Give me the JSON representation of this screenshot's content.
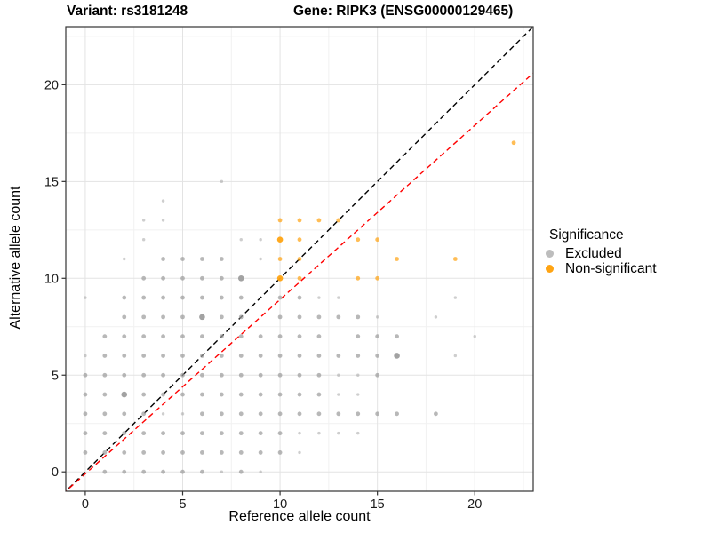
{
  "titles": {
    "left": "Variant: rs3181248",
    "right": "Gene: RIPK3 (ENSG00000129465)"
  },
  "legend": {
    "title": "Significance",
    "items": [
      {
        "label": "Excluded",
        "color": "#bdbdbd"
      },
      {
        "label": "Non-significant",
        "color": "#FFA413"
      }
    ]
  },
  "chart_data": {
    "type": "scatter",
    "xlabel": "Reference allele count",
    "ylabel": "Alternative allele count",
    "x_range": [
      -1,
      23
    ],
    "y_range": [
      -1,
      23
    ],
    "x_ticks": [
      0,
      5,
      10,
      15,
      20
    ],
    "y_ticks": [
      0,
      5,
      10,
      15,
      20
    ],
    "minor_ticks": [
      2.5,
      7.5,
      12.5,
      17.5,
      22.5
    ],
    "grid": "major+minor",
    "legend_position": "right",
    "colors": {
      "major_grid": "#e3e3e3",
      "minor_grid": "#f1f1f1",
      "panel_border": "#333333"
    },
    "reference_lines": [
      {
        "name": "identity",
        "slope": 1.0,
        "intercept": 0.0,
        "color": "#000000",
        "dashed": true
      },
      {
        "name": "fit",
        "slope": 0.9,
        "intercept": -0.1,
        "color": "#FF0000",
        "dashed": true
      }
    ],
    "series": [
      {
        "name": "Excluded",
        "color": "#9d9d9d",
        "points": [
          [
            0,
            1,
            2
          ],
          [
            0,
            2,
            2
          ],
          [
            0,
            3,
            2
          ],
          [
            0,
            4,
            2
          ],
          [
            0,
            5,
            2
          ],
          [
            0,
            6,
            1
          ],
          [
            0,
            9,
            1
          ],
          [
            1,
            0,
            2
          ],
          [
            1,
            1,
            2
          ],
          [
            1,
            2,
            2
          ],
          [
            1,
            3,
            2
          ],
          [
            1,
            4,
            2
          ],
          [
            1,
            5,
            2
          ],
          [
            1,
            6,
            2
          ],
          [
            1,
            7,
            2
          ],
          [
            2,
            0,
            2
          ],
          [
            2,
            1,
            2
          ],
          [
            2,
            2,
            2
          ],
          [
            2,
            3,
            2
          ],
          [
            2,
            4,
            3
          ],
          [
            2,
            5,
            2
          ],
          [
            2,
            6,
            2
          ],
          [
            2,
            7,
            2
          ],
          [
            2,
            8,
            2
          ],
          [
            2,
            9,
            2
          ],
          [
            2,
            11,
            1
          ],
          [
            3,
            0,
            2
          ],
          [
            3,
            1,
            2
          ],
          [
            3,
            2,
            2
          ],
          [
            3,
            3,
            2
          ],
          [
            3,
            4,
            2
          ],
          [
            3,
            5,
            2
          ],
          [
            3,
            6,
            2
          ],
          [
            3,
            7,
            2
          ],
          [
            3,
            8,
            2
          ],
          [
            3,
            9,
            2
          ],
          [
            3,
            10,
            2
          ],
          [
            3,
            12,
            1
          ],
          [
            3,
            13,
            1
          ],
          [
            4,
            0,
            2
          ],
          [
            4,
            1,
            2
          ],
          [
            4,
            2,
            2
          ],
          [
            4,
            3,
            1
          ],
          [
            4,
            4,
            2
          ],
          [
            4,
            5,
            2
          ],
          [
            4,
            6,
            2
          ],
          [
            4,
            7,
            2
          ],
          [
            4,
            8,
            2
          ],
          [
            4,
            9,
            2
          ],
          [
            4,
            10,
            2
          ],
          [
            4,
            11,
            2
          ],
          [
            4,
            13,
            1
          ],
          [
            4,
            14,
            1
          ],
          [
            5,
            0,
            2
          ],
          [
            5,
            1,
            2
          ],
          [
            5,
            2,
            2
          ],
          [
            5,
            3,
            1
          ],
          [
            5,
            4,
            2
          ],
          [
            5,
            5,
            2
          ],
          [
            5,
            6,
            2
          ],
          [
            5,
            7,
            2
          ],
          [
            5,
            8,
            2
          ],
          [
            5,
            9,
            2
          ],
          [
            5,
            10,
            2
          ],
          [
            5,
            11,
            2
          ],
          [
            6,
            0,
            2
          ],
          [
            6,
            1,
            2
          ],
          [
            6,
            2,
            2
          ],
          [
            6,
            3,
            2
          ],
          [
            6,
            4,
            2
          ],
          [
            6,
            5,
            2
          ],
          [
            6,
            6,
            2
          ],
          [
            6,
            7,
            2
          ],
          [
            6,
            8,
            3
          ],
          [
            6,
            9,
            2
          ],
          [
            6,
            10,
            2
          ],
          [
            6,
            11,
            2
          ],
          [
            7,
            0,
            1
          ],
          [
            7,
            1,
            2
          ],
          [
            7,
            2,
            2
          ],
          [
            7,
            3,
            2
          ],
          [
            7,
            4,
            2
          ],
          [
            7,
            5,
            2
          ],
          [
            7,
            6,
            2
          ],
          [
            7,
            7,
            2
          ],
          [
            7,
            8,
            2
          ],
          [
            7,
            9,
            2
          ],
          [
            7,
            10,
            2
          ],
          [
            7,
            11,
            2
          ],
          [
            7,
            15,
            1
          ],
          [
            8,
            0,
            2
          ],
          [
            8,
            1,
            2
          ],
          [
            8,
            2,
            2
          ],
          [
            8,
            3,
            2
          ],
          [
            8,
            4,
            2
          ],
          [
            8,
            5,
            2
          ],
          [
            8,
            6,
            2
          ],
          [
            8,
            7,
            2
          ],
          [
            8,
            8,
            2
          ],
          [
            8,
            9,
            2
          ],
          [
            8,
            10,
            3
          ],
          [
            8,
            12,
            1
          ],
          [
            9,
            0,
            1
          ],
          [
            9,
            1,
            2
          ],
          [
            9,
            2,
            2
          ],
          [
            9,
            3,
            2
          ],
          [
            9,
            4,
            2
          ],
          [
            9,
            5,
            2
          ],
          [
            9,
            6,
            2
          ],
          [
            9,
            7,
            2
          ],
          [
            9,
            11,
            1
          ],
          [
            9,
            12,
            1
          ],
          [
            10,
            1,
            2
          ],
          [
            10,
            2,
            2
          ],
          [
            10,
            3,
            2
          ],
          [
            10,
            4,
            2
          ],
          [
            10,
            5,
            2
          ],
          [
            10,
            6,
            2
          ],
          [
            10,
            7,
            2
          ],
          [
            10,
            8,
            2
          ],
          [
            10,
            9,
            2
          ],
          [
            11,
            1,
            1
          ],
          [
            11,
            2,
            1
          ],
          [
            11,
            3,
            2
          ],
          [
            11,
            4,
            2
          ],
          [
            11,
            5,
            2
          ],
          [
            11,
            6,
            2
          ],
          [
            11,
            7,
            2
          ],
          [
            11,
            8,
            2
          ],
          [
            11,
            9,
            2
          ],
          [
            12,
            2,
            1
          ],
          [
            12,
            3,
            2
          ],
          [
            12,
            4,
            2
          ],
          [
            12,
            5,
            2
          ],
          [
            12,
            6,
            2
          ],
          [
            12,
            7,
            2
          ],
          [
            12,
            8,
            2
          ],
          [
            12,
            9,
            1
          ],
          [
            13,
            2,
            1
          ],
          [
            13,
            3,
            2
          ],
          [
            13,
            4,
            1
          ],
          [
            13,
            5,
            1
          ],
          [
            13,
            6,
            2
          ],
          [
            13,
            8,
            2
          ],
          [
            13,
            9,
            1
          ],
          [
            14,
            2,
            1
          ],
          [
            14,
            3,
            2
          ],
          [
            14,
            4,
            1
          ],
          [
            14,
            5,
            1
          ],
          [
            14,
            6,
            2
          ],
          [
            14,
            7,
            2
          ],
          [
            14,
            8,
            2
          ],
          [
            15,
            3,
            2
          ],
          [
            15,
            5,
            2
          ],
          [
            15,
            6,
            2
          ],
          [
            15,
            7,
            2
          ],
          [
            15,
            8,
            1
          ],
          [
            16,
            3,
            2
          ],
          [
            16,
            6,
            3
          ],
          [
            16,
            7,
            2
          ],
          [
            18,
            3,
            2
          ],
          [
            18,
            8,
            1
          ],
          [
            19,
            6,
            1
          ],
          [
            19,
            9,
            1
          ],
          [
            20,
            7,
            1
          ]
        ]
      },
      {
        "name": "Non-significant",
        "color": "#FFA413",
        "points": [
          [
            10,
            10,
            3
          ],
          [
            10,
            11,
            2
          ],
          [
            10,
            12,
            3
          ],
          [
            10,
            13,
            2
          ],
          [
            11,
            10,
            2
          ],
          [
            11,
            11,
            2
          ],
          [
            11,
            12,
            2
          ],
          [
            11,
            13,
            2
          ],
          [
            12,
            13,
            2
          ],
          [
            13,
            13,
            2
          ],
          [
            14,
            10,
            2
          ],
          [
            14,
            12,
            2
          ],
          [
            15,
            10,
            2
          ],
          [
            15,
            12,
            2
          ],
          [
            16,
            11,
            2
          ],
          [
            19,
            11,
            2
          ],
          [
            22,
            17,
            2
          ]
        ]
      }
    ]
  }
}
